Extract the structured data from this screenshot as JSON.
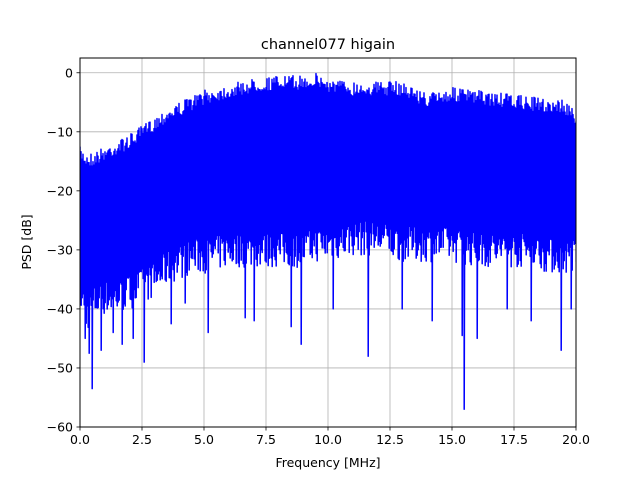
{
  "chart_data": {
    "type": "line",
    "title": "channel077 higain",
    "xlabel": "Frequency [MHz]",
    "ylabel": "PSD [dB]",
    "xlim": [
      0,
      20
    ],
    "ylim": [
      -60,
      2.5
    ],
    "xticks": [
      0.0,
      2.5,
      5.0,
      7.5,
      10.0,
      12.5,
      15.0,
      17.5,
      20.0
    ],
    "xtick_labels": [
      "0.0",
      "2.5",
      "5.0",
      "7.5",
      "10.0",
      "12.5",
      "15.0",
      "17.5",
      "20.0"
    ],
    "yticks": [
      0,
      -10,
      -20,
      -30,
      -40,
      -50,
      -60
    ],
    "ytick_labels": [
      "0",
      "−10",
      "−20",
      "−30",
      "−40",
      "−50",
      "−60"
    ],
    "grid": true,
    "series": [
      {
        "color": "#0000ff",
        "x": [
          0.0,
          0.25,
          0.5,
          1.0,
          1.5,
          2.0,
          2.5,
          3.0,
          3.5,
          4.0,
          4.5,
          5.0,
          6.0,
          7.0,
          8.0,
          9.0,
          9.5,
          10.0,
          11.0,
          12.0,
          13.0,
          14.0,
          15.0,
          16.0,
          17.0,
          18.0,
          19.0,
          19.5,
          20.0
        ],
        "upper": [
          -12.5,
          -13.5,
          -13.5,
          -12.5,
          -11.5,
          -10.5,
          -9.0,
          -7.5,
          -6.0,
          -5.0,
          -4.0,
          -3.0,
          -2.0,
          -1.0,
          -0.5,
          -0.5,
          0.0,
          -1.0,
          -1.5,
          -1.5,
          -1.5,
          -3.5,
          -2.5,
          -3.0,
          -3.5,
          -4.0,
          -4.5,
          -4.5,
          -6.5
        ],
        "lower": [
          -37.0,
          -41.0,
          -39.0,
          -38.0,
          -38.0,
          -37.0,
          -36.0,
          -35.0,
          -33.0,
          -32.0,
          -31.0,
          -31.0,
          -30.0,
          -30.0,
          -30.0,
          -30.0,
          -29.0,
          -29.0,
          -28.0,
          -28.0,
          -29.0,
          -29.0,
          -29.0,
          -30.0,
          -30.0,
          -30.0,
          -31.0,
          -31.0,
          -31.0
        ],
        "dips": [
          {
            "x": 0.2,
            "y": -45.0
          },
          {
            "x": 0.35,
            "y": -47.5
          },
          {
            "x": 0.5,
            "y": -53.5
          },
          {
            "x": 0.85,
            "y": -47.0
          },
          {
            "x": 1.35,
            "y": -44.0
          },
          {
            "x": 1.7,
            "y": -46.0
          },
          {
            "x": 2.15,
            "y": -45.0
          },
          {
            "x": 2.6,
            "y": -49.0
          },
          {
            "x": 3.65,
            "y": -42.5
          },
          {
            "x": 4.25,
            "y": -39.0
          },
          {
            "x": 5.15,
            "y": -44.0
          },
          {
            "x": 6.65,
            "y": -41.5
          },
          {
            "x": 7.0,
            "y": -42.0
          },
          {
            "x": 8.5,
            "y": -43.0
          },
          {
            "x": 8.9,
            "y": -46.0
          },
          {
            "x": 10.2,
            "y": -40.0
          },
          {
            "x": 11.6,
            "y": -48.0
          },
          {
            "x": 13.0,
            "y": -40.0
          },
          {
            "x": 14.2,
            "y": -42.0
          },
          {
            "x": 15.4,
            "y": -44.5
          },
          {
            "x": 15.5,
            "y": -57.0
          },
          {
            "x": 16.0,
            "y": -45.0
          },
          {
            "x": 17.2,
            "y": -40.0
          },
          {
            "x": 18.2,
            "y": -42.0
          },
          {
            "x": 19.4,
            "y": -47.0
          },
          {
            "x": 19.8,
            "y": -40.0
          }
        ]
      }
    ]
  }
}
